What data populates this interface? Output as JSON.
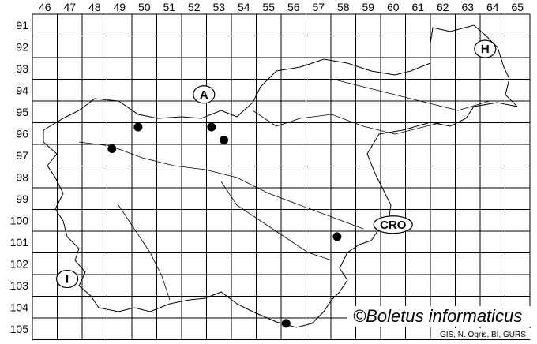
{
  "map": {
    "columns": [
      "46",
      "47",
      "48",
      "49",
      "50",
      "51",
      "52",
      "53",
      "54",
      "55",
      "56",
      "57",
      "58",
      "59",
      "60",
      "61",
      "62",
      "63",
      "64",
      "65"
    ],
    "rows": [
      "91",
      "92",
      "93",
      "94",
      "95",
      "96",
      "97",
      "98",
      "99",
      "100",
      "101",
      "102",
      "103",
      "104",
      "105"
    ],
    "countries": [
      {
        "label": "A",
        "col": 52.9,
        "row": 94.7
      },
      {
        "label": "H",
        "col": 64.2,
        "row": 92.6
      },
      {
        "label": "CRO",
        "col": 60.5,
        "row": 100.7
      },
      {
        "label": "I",
        "col": 47.4,
        "row": 103.2
      }
    ],
    "records": [
      {
        "col": 50.25,
        "row": 96.2
      },
      {
        "col": 49.2,
        "row": 97.2
      },
      {
        "col": 53.2,
        "row": 96.2
      },
      {
        "col": 53.7,
        "row": 96.8
      },
      {
        "col": 58.25,
        "row": 101.25
      },
      {
        "col": 56.2,
        "row": 105.25
      }
    ],
    "credit": "©Boletus informaticus",
    "source": "GIS, N. Ogris, BI, GURS"
  }
}
